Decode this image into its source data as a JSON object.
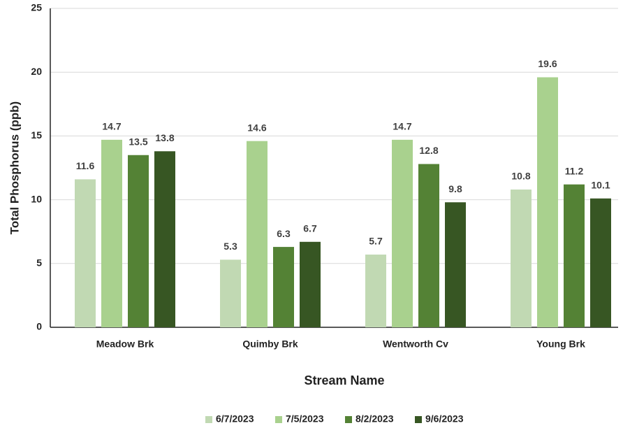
{
  "chart_data": {
    "type": "bar",
    "y_label": "Total Phosphorus (ppb)",
    "x_label": "Stream Name",
    "categories": [
      "Meadow Brk",
      "Quimby Brk",
      "Wentworth Cv",
      "Young Brk"
    ],
    "series": [
      {
        "name": "6/7/2023",
        "color": "#c1d9b3",
        "values": [
          11.6,
          5.3,
          5.7,
          10.8
        ]
      },
      {
        "name": "7/5/2023",
        "color": "#a9d18e",
        "values": [
          14.7,
          14.6,
          14.7,
          19.6
        ]
      },
      {
        "name": "8/2/2023",
        "color": "#548235",
        "values": [
          13.5,
          6.3,
          12.8,
          11.2
        ]
      },
      {
        "name": "9/6/2023",
        "color": "#375623",
        "values": [
          13.8,
          6.7,
          9.8,
          10.1
        ]
      }
    ],
    "ylim": [
      0,
      25
    ],
    "yticks": [
      0,
      5,
      10,
      15,
      20,
      25
    ],
    "grid": true,
    "legend": "bottom"
  }
}
